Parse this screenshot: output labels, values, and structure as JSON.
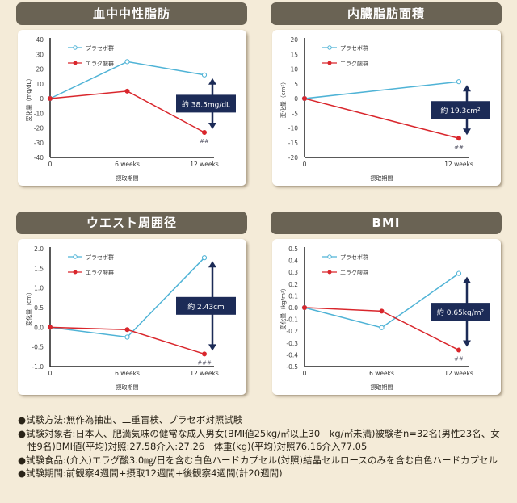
{
  "legend": {
    "placebo": "プラセボ群",
    "ellagic": "エラグ酸群"
  },
  "colors": {
    "placebo": "#4fb3d6",
    "ellagic": "#d9262c",
    "annotation": "#1c2b57",
    "header": "#6a6354"
  },
  "chart_data": [
    {
      "type": "line",
      "title": "血中中性脂肪",
      "ylabel": "変化量（mg/dL）",
      "xlabel": "摂取期間",
      "ylim": [
        -40,
        40
      ],
      "yticks": [
        40,
        30,
        20,
        10,
        0,
        -10,
        -20,
        -30,
        -40
      ],
      "x_weeks": [
        0,
        6,
        12
      ],
      "categories": [
        "0",
        "6 weeks",
        "12 weeks"
      ],
      "series": [
        {
          "name": "プラセボ群",
          "values": [
            0,
            25,
            16
          ]
        },
        {
          "name": "エラグ酸群",
          "values": [
            0,
            5,
            -23
          ]
        }
      ],
      "annotation": "約 38.5mg/dL",
      "significance": "##"
    },
    {
      "type": "line",
      "title": "内臓脂肪面積",
      "ylabel": "変化量（cm²）",
      "xlabel": "摂取期間",
      "ylim": [
        -20,
        20
      ],
      "yticks": [
        20,
        15,
        10,
        5,
        0,
        -5,
        -10,
        -15,
        -20
      ],
      "x_weeks": [
        0,
        12
      ],
      "categories": [
        "0",
        "12 weeks"
      ],
      "series": [
        {
          "name": "プラセボ群",
          "values": [
            0,
            5.7
          ]
        },
        {
          "name": "エラグ酸群",
          "values": [
            0,
            -13.5
          ]
        }
      ],
      "annotation": "約 19.3cm²",
      "significance": "##"
    },
    {
      "type": "line",
      "title": "ウエスト周囲径",
      "ylabel": "変化量（cm）",
      "xlabel": "摂取期間",
      "ylim": [
        -1,
        2
      ],
      "yticks": [
        "2.0",
        "1.5",
        "1.0",
        "0.5",
        "0.0",
        "-0.5",
        "-1.0"
      ],
      "x_weeks": [
        0,
        6,
        12
      ],
      "categories": [
        "0",
        "6 weeks",
        "12 weeks"
      ],
      "series": [
        {
          "name": "プラセボ群",
          "values": [
            0,
            -0.25,
            1.77
          ]
        },
        {
          "name": "エラグ酸群",
          "values": [
            0,
            -0.06,
            -0.68
          ]
        }
      ],
      "annotation": "約 2.43cm",
      "significance": "###"
    },
    {
      "type": "line",
      "title": "BMI",
      "ylabel": "変化量（kg/m²）",
      "xlabel": "摂取期間",
      "ylim": [
        -0.5,
        0.5
      ],
      "yticks": [
        "0.5",
        "0.4",
        "0.3",
        "0.2",
        "0.1",
        "0.0",
        "-0.1",
        "-0.2",
        "-0.3",
        "-0.4",
        "-0.5"
      ],
      "x_weeks": [
        0,
        6,
        12
      ],
      "categories": [
        "0",
        "6 weeks",
        "12 weeks"
      ],
      "series": [
        {
          "name": "プラセボ群",
          "values": [
            0,
            -0.17,
            0.29
          ]
        },
        {
          "name": "エラグ酸群",
          "values": [
            0,
            -0.03,
            -0.36
          ]
        }
      ],
      "annotation": "約 0.65kg/m²",
      "significance": "##"
    }
  ],
  "notes": [
    "●試験方法:無作為抽出、二重盲検、プラセボ対照試験",
    "●試験対象者:日本人、肥満気味の健常な成人男女(BMI値25kg/㎡以上30　kg/㎡未満)被験者n=32名(男性23名、女性9名)BMI値(平均)対照:27.58介入:27.26　体重(kg)(平均)対照76.16介入77.05",
    "●試験食品:(介入)エラグ酸3.0㎎/日を含む白色ハードカプセル(対照)結晶セルロースのみを含む白色ハードカプセル",
    "●試験期間:前観察4週間+摂取12週間+後観察4週間(計20週間)"
  ]
}
